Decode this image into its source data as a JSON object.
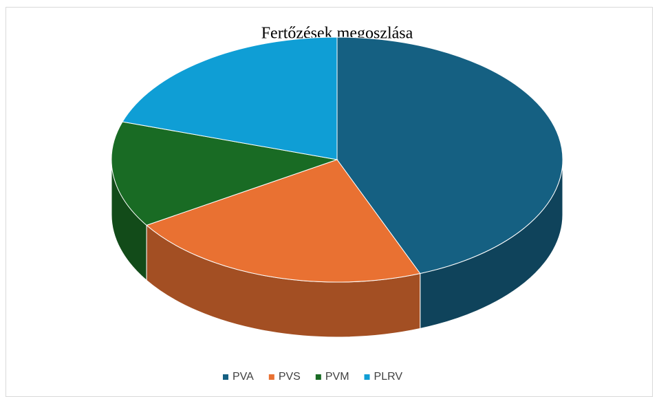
{
  "chart_data": {
    "type": "pie",
    "title": "Fertőzések megoszlása",
    "categories": [
      "PVA",
      "PVS",
      "PVM",
      "PLRV"
    ],
    "values": [
      44,
      22,
      14,
      20
    ],
    "colors": [
      "#156082",
      "#e97132",
      "#196b24",
      "#0f9ed5"
    ],
    "legend": "bottom"
  }
}
